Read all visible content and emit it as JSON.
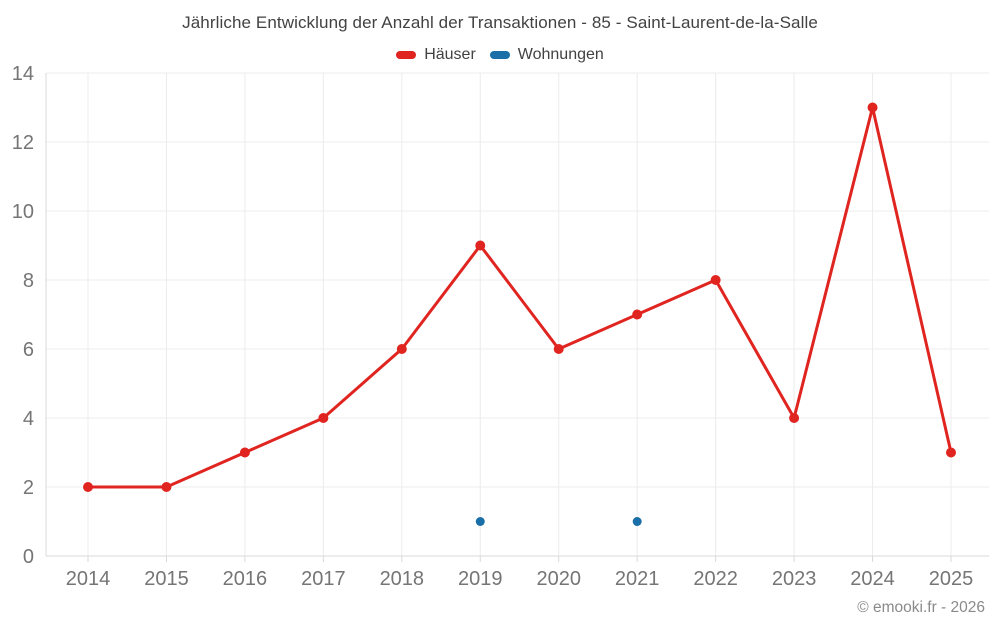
{
  "chart": {
    "title": "Jährliche Entwicklung der Anzahl der Transaktionen - 85 - Saint-Laurent-de-la-Salle",
    "footer": "© emooki.fr - 2026"
  },
  "chart_data": {
    "type": "line",
    "title": "Jährliche Entwicklung der Anzahl der Transaktionen - 85 - Saint-Laurent-de-la-Salle",
    "xlabel": "",
    "ylabel": "",
    "categories": [
      "2014",
      "2015",
      "2016",
      "2017",
      "2018",
      "2019",
      "2020",
      "2021",
      "2022",
      "2023",
      "2024",
      "2025"
    ],
    "series": [
      {
        "name": "Häuser",
        "type": "line",
        "color": "#e02520",
        "line_width": 3,
        "marker_radius": 5,
        "values": [
          2,
          2,
          3,
          4,
          6,
          9,
          6,
          7,
          8,
          4,
          13,
          3
        ]
      },
      {
        "name": "Wohnungen",
        "type": "scatter",
        "color": "#1a6fa8",
        "line_width": 0,
        "marker_radius": 4.5,
        "values": [
          null,
          null,
          null,
          null,
          null,
          1,
          null,
          1,
          null,
          null,
          null,
          null
        ]
      }
    ],
    "ylim": [
      0,
      14
    ],
    "ytick_step": 2,
    "grid": true,
    "legend_position": "top",
    "colors": {
      "grid": "#ececec",
      "axis": "#d9d9d9",
      "tick_label": "#757575"
    }
  }
}
